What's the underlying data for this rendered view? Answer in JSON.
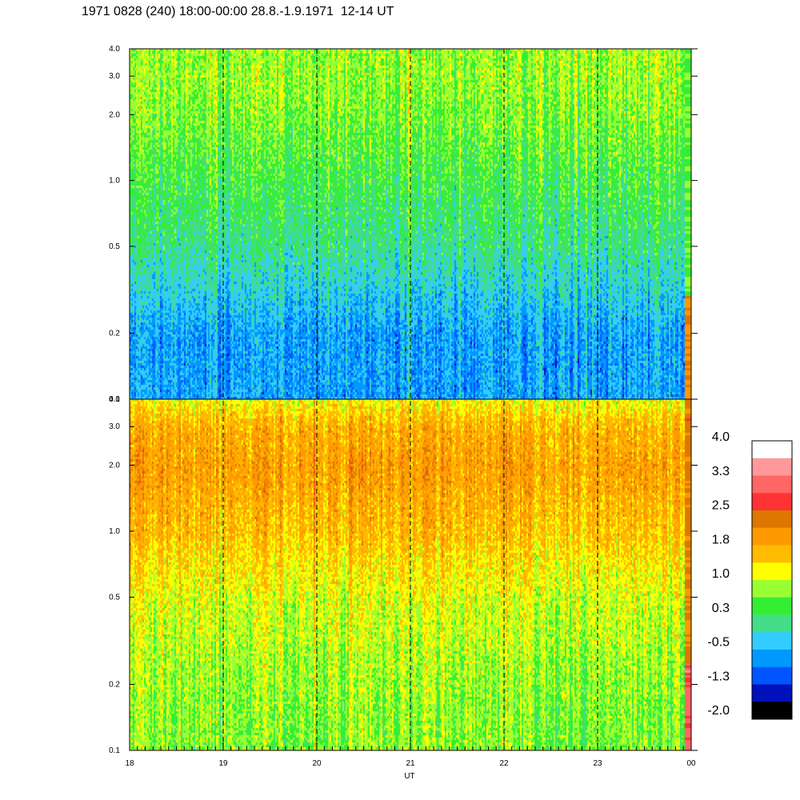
{
  "title": "1971 0828 (240) 18:00-00:00 28.8.-1.9.1971  12-14 UT",
  "chart_data": {
    "type": "heatmap",
    "title": "1971 0828 (240) 18:00-00:00 28.8.-1.9.1971  12-14 UT",
    "xlabel": "UT",
    "x_tick_labels": [
      "18",
      "19",
      "20",
      "21",
      "22",
      "23",
      "00"
    ],
    "x_range_hours": [
      18,
      24
    ],
    "dashed_hour_markers": [
      19,
      20,
      21,
      22,
      23
    ],
    "y_scale": "log",
    "y_range": [
      0.1,
      4.0
    ],
    "y_tick_labels": [
      "0.1",
      "0.2",
      "0.5",
      "1.0",
      "2.0",
      "3.0",
      "4.0"
    ],
    "panels": [
      {
        "name": "",
        "description_profile": [
          {
            "y": 0.1,
            "level": -0.6
          },
          {
            "y": 0.2,
            "level": -0.6
          },
          {
            "y": 0.5,
            "level": 0.1
          },
          {
            "y": 1.0,
            "level": 0.4
          },
          {
            "y": 2.0,
            "level": 0.7
          },
          {
            "y": 3.0,
            "level": 0.8
          },
          {
            "y": 4.0,
            "level": 0.8
          }
        ]
      },
      {
        "name": "",
        "description_profile": [
          {
            "y": 0.1,
            "level": 0.7
          },
          {
            "y": 0.2,
            "level": 0.8
          },
          {
            "y": 0.5,
            "level": 1.1
          },
          {
            "y": 1.0,
            "level": 1.6
          },
          {
            "y": 2.0,
            "level": 1.9
          },
          {
            "y": 3.0,
            "level": 1.7
          },
          {
            "y": 4.0,
            "level": 1.2
          }
        ]
      }
    ],
    "colorbar": {
      "tick_labels": [
        "4.0",
        "3.3",
        "2.5",
        "1.8",
        "1.0",
        "0.3",
        "-0.5",
        "-1.3",
        "-2.0"
      ],
      "range": [
        -2.0,
        4.0
      ],
      "colors": [
        "#ffffff",
        "#ff9999",
        "#ff6666",
        "#ff3333",
        "#dd7700",
        "#ff9900",
        "#ffbb00",
        "#ffff00",
        "#99ff33",
        "#33ee33",
        "#44dd88",
        "#33ccff",
        "#0099ff",
        "#0055ff",
        "#0011bb",
        "#000000"
      ]
    }
  }
}
